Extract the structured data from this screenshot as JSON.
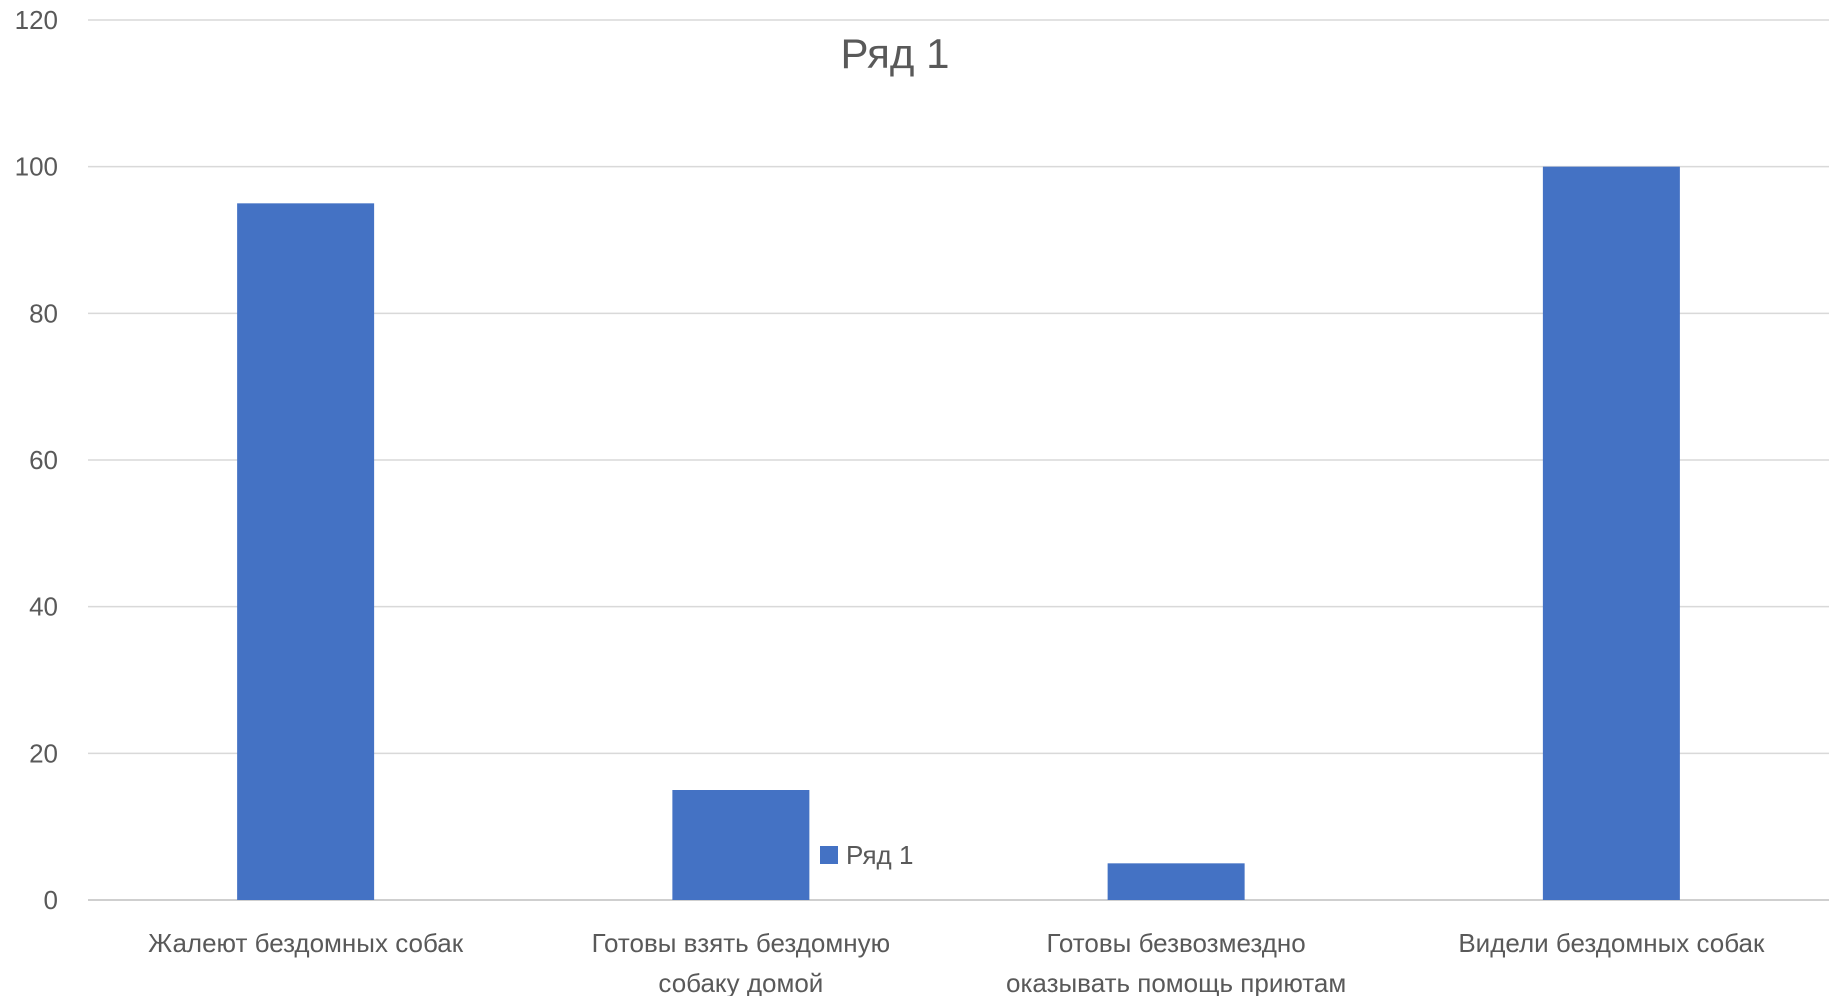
{
  "chart_data": {
    "type": "bar",
    "title": "Ряд 1",
    "xlabel": "",
    "ylabel": "",
    "categories": [
      [
        "Жалеют бездомных собак"
      ],
      [
        "Готовы взять бездомную",
        "собаку домой"
      ],
      [
        "Готовы безвозмездно",
        "оказывать помощь приютам"
      ],
      [
        "Видели бездомных собак"
      ]
    ],
    "series": [
      {
        "name": "Ряд 1",
        "values": [
          95,
          15,
          5,
          100
        ],
        "color": "#4472C4"
      }
    ],
    "ylim": [
      0,
      120
    ],
    "yticks": [
      0,
      20,
      40,
      60,
      80,
      100,
      120
    ],
    "grid": true,
    "legend_position": "inside, right of second bar"
  }
}
